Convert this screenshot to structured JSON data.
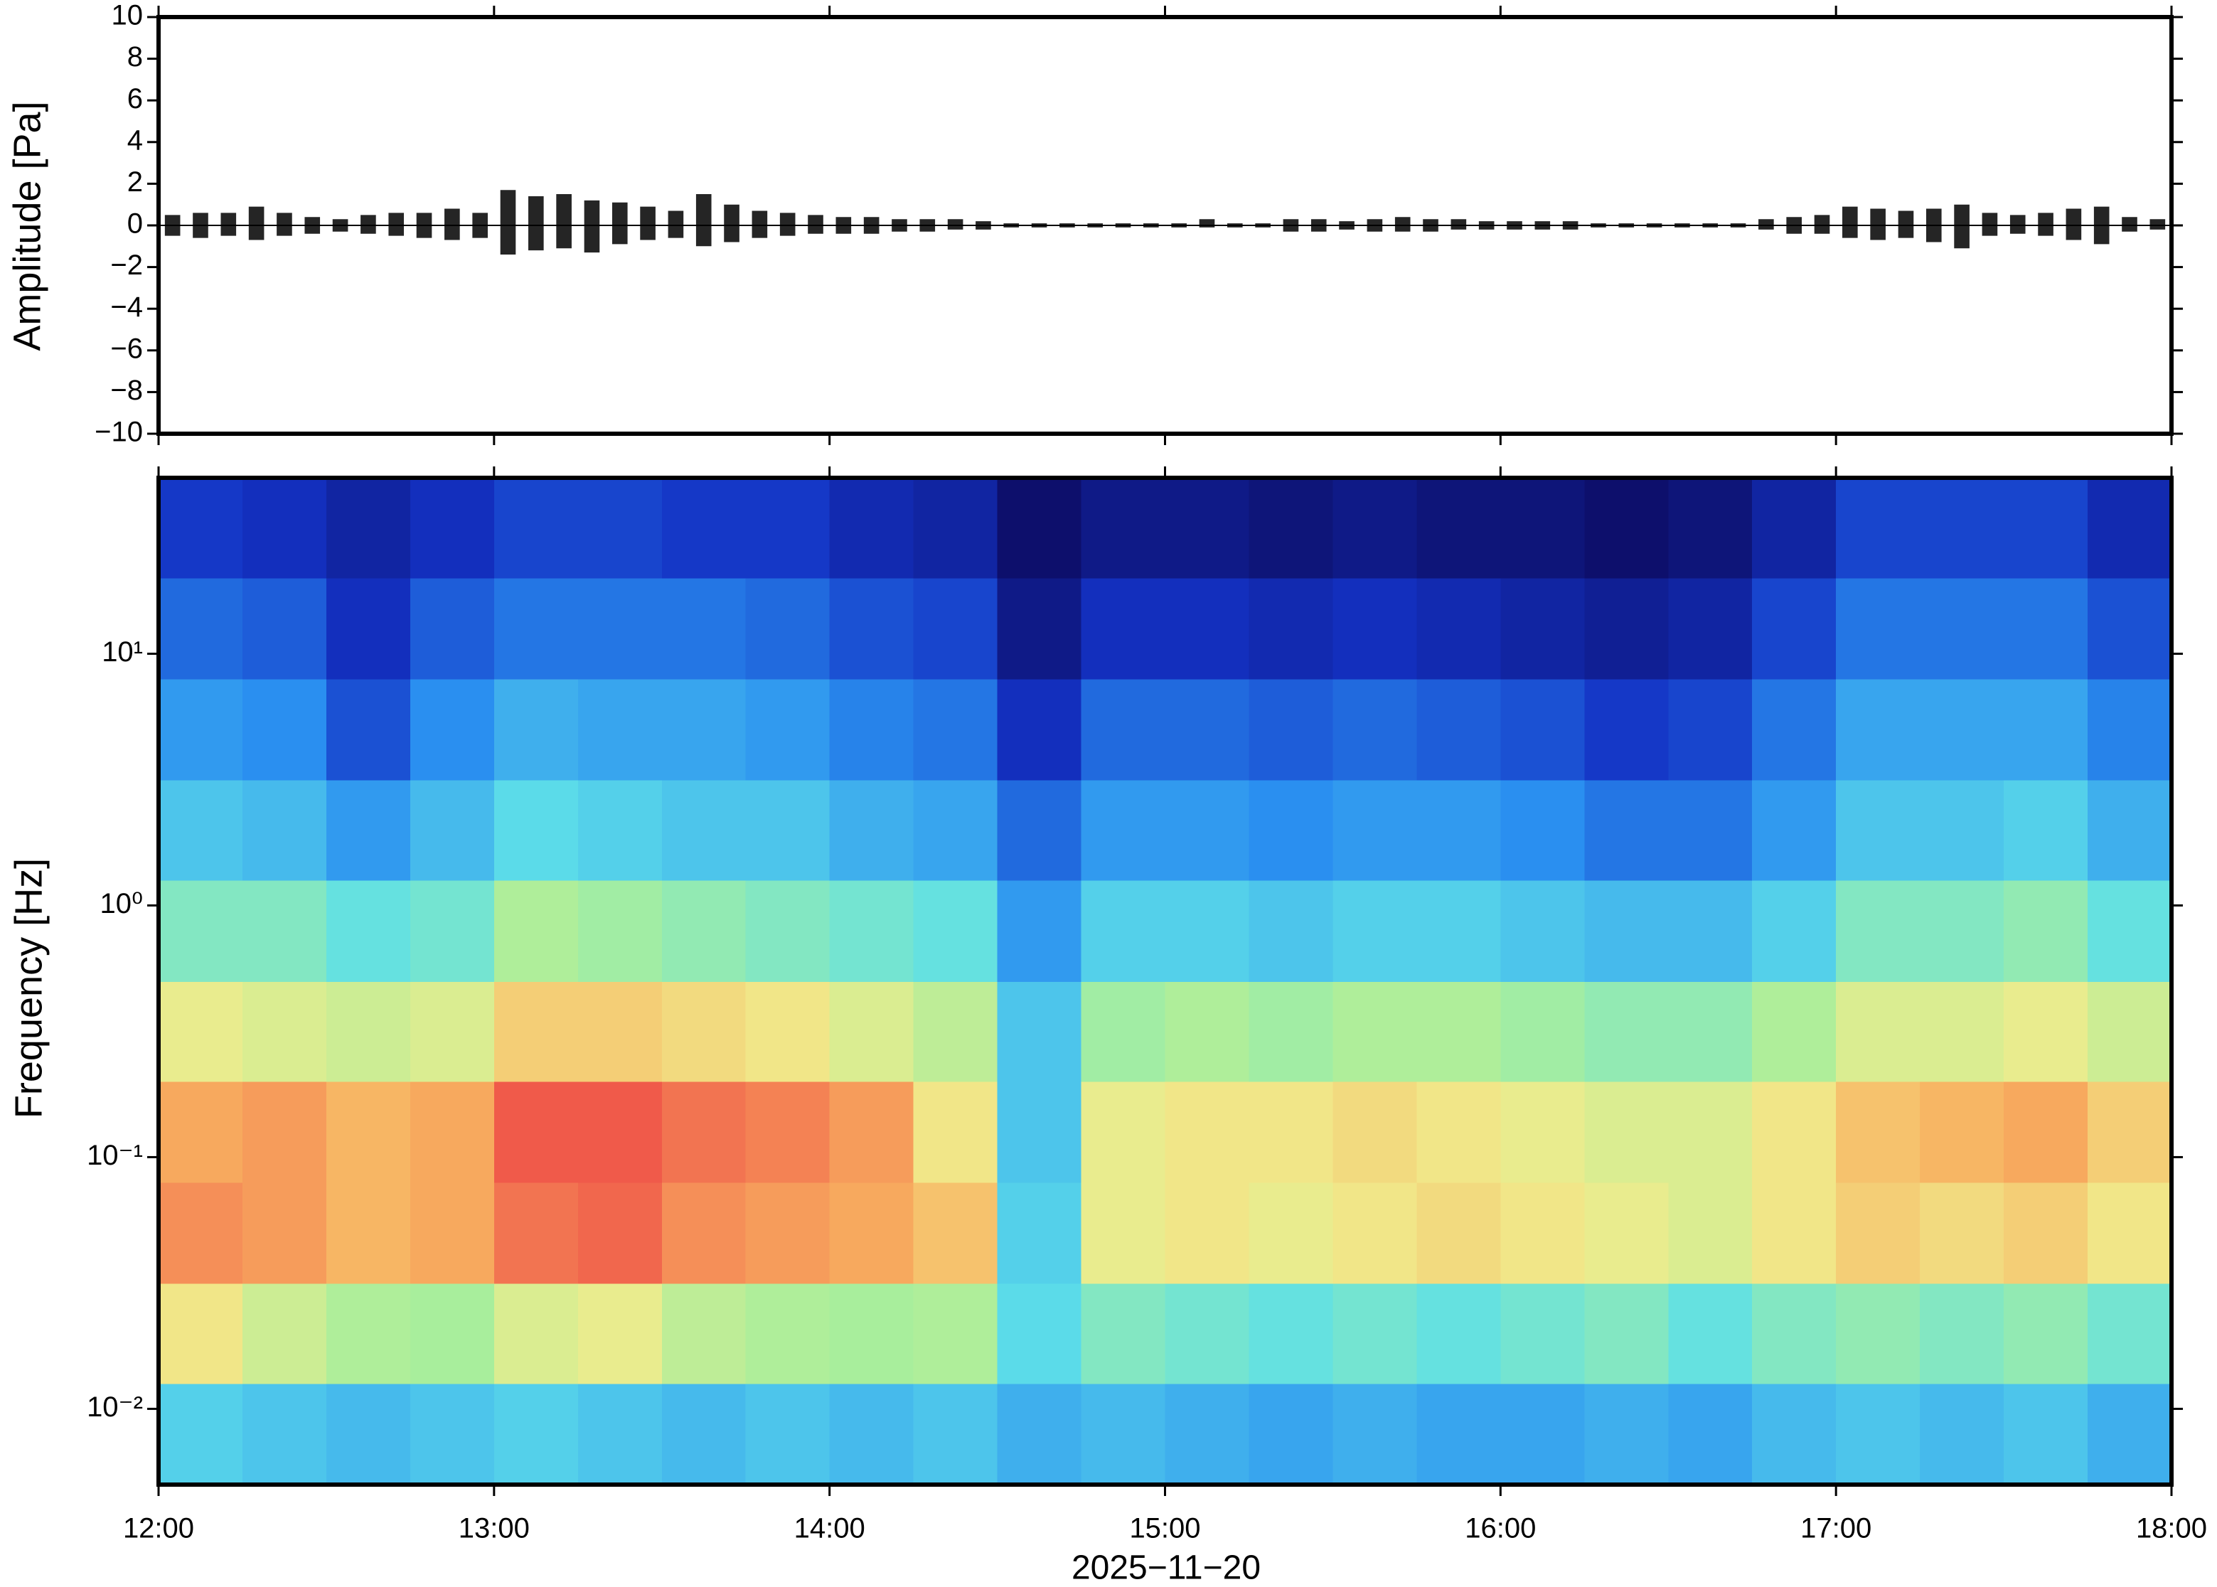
{
  "chart_data": [
    {
      "type": "waveform",
      "ylabel": "Amplitude [Pa]",
      "color": "#000000",
      "x": [
        0,
        5,
        10,
        15,
        20,
        25,
        30,
        35,
        40,
        45,
        50,
        55,
        60,
        65,
        70,
        75,
        80,
        85,
        90,
        95,
        100,
        105,
        110,
        115,
        120,
        125,
        130,
        135,
        140,
        145,
        150,
        155,
        160,
        165,
        170,
        175,
        180,
        185,
        190,
        195,
        200,
        205,
        210,
        215,
        220,
        225,
        230,
        235,
        240,
        245,
        250,
        255,
        260,
        265,
        270,
        275,
        280,
        285,
        290,
        295,
        300,
        305,
        310,
        315,
        320,
        325,
        330,
        335,
        340,
        345,
        350,
        355
      ],
      "max": [
        0.5,
        0.6,
        0.6,
        0.9,
        0.6,
        0.4,
        0.3,
        0.5,
        0.6,
        0.6,
        0.8,
        0.6,
        1.7,
        1.4,
        1.5,
        1.2,
        1.1,
        0.9,
        0.7,
        1.5,
        1.0,
        0.7,
        0.6,
        0.5,
        0.4,
        0.4,
        0.3,
        0.3,
        0.3,
        0.2,
        0.1,
        0.1,
        0.1,
        0.1,
        0.1,
        0.1,
        0.1,
        0.3,
        0.1,
        0.1,
        0.3,
        0.3,
        0.2,
        0.3,
        0.4,
        0.3,
        0.3,
        0.2,
        0.2,
        0.2,
        0.2,
        0.1,
        0.1,
        0.1,
        0.1,
        0.1,
        0.1,
        0.3,
        0.4,
        0.5,
        0.9,
        0.8,
        0.7,
        0.8,
        1.0,
        0.6,
        0.5,
        0.6,
        0.8,
        0.9,
        0.4,
        0.3
      ],
      "min": [
        -0.5,
        -0.6,
        -0.5,
        -0.7,
        -0.5,
        -0.4,
        -0.3,
        -0.4,
        -0.5,
        -0.6,
        -0.7,
        -0.6,
        -1.4,
        -1.2,
        -1.1,
        -1.3,
        -0.9,
        -0.7,
        -0.6,
        -1.0,
        -0.8,
        -0.6,
        -0.5,
        -0.4,
        -0.4,
        -0.4,
        -0.3,
        -0.3,
        -0.2,
        -0.2,
        -0.1,
        -0.1,
        -0.1,
        -0.1,
        -0.1,
        -0.1,
        -0.1,
        -0.1,
        -0.1,
        -0.1,
        -0.3,
        -0.3,
        -0.2,
        -0.3,
        -0.3,
        -0.3,
        -0.2,
        -0.2,
        -0.2,
        -0.2,
        -0.2,
        -0.1,
        -0.1,
        -0.1,
        -0.1,
        -0.1,
        -0.1,
        -0.2,
        -0.4,
        -0.4,
        -0.6,
        -0.7,
        -0.6,
        -0.8,
        -1.1,
        -0.5,
        -0.4,
        -0.5,
        -0.7,
        -0.9,
        -0.3,
        -0.2
      ],
      "xlim": [
        0,
        360
      ],
      "xticks": [
        0,
        60,
        120,
        180,
        240,
        300,
        360
      ],
      "ylim": [
        -10,
        10
      ],
      "yticks": [
        {
          "value": -10,
          "label": "−10"
        },
        {
          "value": -8,
          "label": "−8"
        },
        {
          "value": -6,
          "label": "−6"
        },
        {
          "value": -4,
          "label": "−4"
        },
        {
          "value": -2,
          "label": "−2"
        },
        0,
        2,
        4,
        6,
        8,
        10
      ]
    },
    {
      "type": "heatmap",
      "ylabel": "Frequency [Hz]",
      "xlabel": "2025−11−20",
      "x_bins": [
        0,
        15,
        30,
        45,
        60,
        75,
        90,
        105,
        120,
        135,
        150,
        165,
        180,
        195,
        210,
        225,
        240,
        255,
        270,
        285,
        300,
        315,
        330,
        345,
        360
      ],
      "y_bins": [
        0.005,
        0.0126,
        0.0316,
        0.0794,
        0.2,
        0.5,
        1.26,
        3.16,
        7.94,
        20,
        50
      ],
      "z": [
        [
          42,
          40,
          38,
          40,
          42,
          40,
          38,
          40,
          38,
          40,
          36,
          38,
          36,
          34,
          36,
          34,
          34,
          36,
          34,
          38,
          40,
          38,
          40,
          36
        ],
        [
          66,
          60,
          56,
          55,
          62,
          64,
          58,
          56,
          55,
          56,
          44,
          50,
          48,
          46,
          48,
          46,
          48,
          50,
          46,
          50,
          52,
          50,
          52,
          48
        ],
        [
          80,
          78,
          74,
          76,
          84,
          86,
          80,
          78,
          76,
          72,
          42,
          64,
          66,
          64,
          66,
          68,
          66,
          64,
          62,
          66,
          70,
          68,
          70,
          66
        ],
        [
          76,
          78,
          74,
          76,
          88,
          88,
          84,
          82,
          78,
          66,
          40,
          64,
          66,
          66,
          68,
          66,
          64,
          62,
          62,
          66,
          72,
          74,
          76,
          70
        ],
        [
          64,
          62,
          60,
          62,
          70,
          70,
          68,
          66,
          62,
          58,
          40,
          54,
          56,
          54,
          56,
          56,
          54,
          52,
          52,
          56,
          62,
          62,
          64,
          60
        ],
        [
          50,
          50,
          46,
          48,
          56,
          54,
          52,
          50,
          48,
          46,
          32,
          42,
          42,
          40,
          42,
          42,
          40,
          38,
          38,
          42,
          50,
          50,
          52,
          46
        ],
        [
          40,
          38,
          32,
          38,
          44,
          42,
          40,
          40,
          36,
          34,
          24,
          32,
          32,
          30,
          32,
          32,
          30,
          26,
          26,
          32,
          40,
          40,
          42,
          36
        ],
        [
          32,
          30,
          20,
          30,
          36,
          34,
          34,
          32,
          28,
          26,
          14,
          24,
          24,
          22,
          24,
          22,
          20,
          16,
          18,
          26,
          34,
          34,
          34,
          28
        ],
        [
          24,
          22,
          14,
          22,
          26,
          26,
          26,
          24,
          20,
          18,
          6,
          14,
          14,
          12,
          14,
          12,
          10,
          8,
          10,
          18,
          26,
          26,
          26,
          20
        ],
        [
          16,
          14,
          10,
          14,
          18,
          18,
          16,
          16,
          12,
          10,
          2,
          6,
          6,
          4,
          6,
          4,
          4,
          2,
          4,
          10,
          18,
          18,
          18,
          12
        ]
      ],
      "clim": [
        0,
        100
      ],
      "colorscale": [
        [
          0,
          "#0c0a5e"
        ],
        [
          15,
          "#1432c4"
        ],
        [
          30,
          "#2a8ff0"
        ],
        [
          45,
          "#5ee0e8"
        ],
        [
          55,
          "#a8ee9c"
        ],
        [
          65,
          "#f0ec8c"
        ],
        [
          75,
          "#f8b060"
        ],
        [
          88,
          "#f05a4a"
        ],
        [
          100,
          "#d03030"
        ]
      ],
      "xlim": [
        0,
        360
      ],
      "xticks": [
        {
          "value": 0,
          "label": "12:00"
        },
        {
          "value": 60,
          "label": "13:00"
        },
        {
          "value": 120,
          "label": "14:00"
        },
        {
          "value": 180,
          "label": "15:00"
        },
        {
          "value": 240,
          "label": "16:00"
        },
        {
          "value": 300,
          "label": "17:00"
        },
        {
          "value": 360,
          "label": "18:00"
        }
      ],
      "ylim": [
        0.005,
        50
      ],
      "yscale": "log",
      "yticks": [
        {
          "value": 0.01,
          "label": "10⁻²"
        },
        {
          "value": 0.1,
          "label": "10⁻¹"
        },
        {
          "value": 1,
          "label": "10⁰"
        },
        {
          "value": 10,
          "label": "10¹"
        }
      ]
    }
  ]
}
